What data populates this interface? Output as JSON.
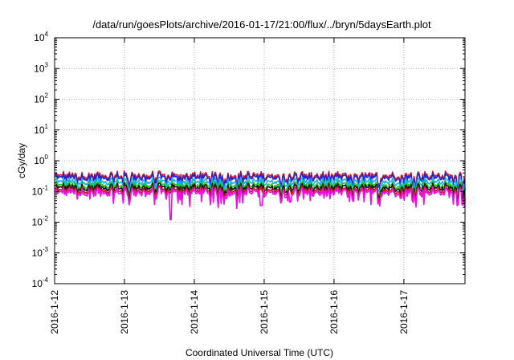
{
  "chart_data": {
    "type": "line",
    "title": "/data/run/goesPlots/archive/2016-01-17/21:00/flux/../bryn/5daysEarth.plot",
    "xlabel": "Coordinated Universal Time (UTC)",
    "ylabel": "cGy/day",
    "yscale": "log",
    "ylim": [
      0.0001,
      10000
    ],
    "yticks": [
      {
        "base": "10",
        "exp": "-4",
        "value": 0.0001
      },
      {
        "base": "10",
        "exp": "-3",
        "value": 0.001
      },
      {
        "base": "10",
        "exp": "-2",
        "value": 0.01
      },
      {
        "base": "10",
        "exp": "-1",
        "value": 0.1
      },
      {
        "base": "10",
        "exp": "0",
        "value": 1
      },
      {
        "base": "10",
        "exp": "1",
        "value": 10
      },
      {
        "base": "10",
        "exp": "2",
        "value": 100
      },
      {
        "base": "10",
        "exp": "3",
        "value": 1000
      },
      {
        "base": "10",
        "exp": "4",
        "value": 10000
      }
    ],
    "xlim": [
      "2016-01-12",
      "2016-01-17T21:00"
    ],
    "xticks": [
      "2016-1-12",
      "2016-1-13",
      "2016-1-14",
      "2016-1-15",
      "2016-1-16",
      "2016-1-17"
    ],
    "grid": true,
    "series": [
      {
        "color": "#e8141e",
        "level": 0.33,
        "dips": []
      },
      {
        "color": "#2222d8",
        "level": 0.29,
        "dips": []
      },
      {
        "color": "#18b4f0",
        "level": 0.21,
        "dips": []
      },
      {
        "color": "#1ec81e",
        "level": 0.16,
        "dips": []
      },
      {
        "color": "#101010",
        "level": 0.135,
        "dips": []
      },
      {
        "color": "#c81414",
        "level": 0.11,
        "dips": []
      },
      {
        "color": "#f010e6",
        "level": 0.095,
        "dips": [
          {
            "x": "2016-01-13T16:00",
            "y": 0.012
          },
          {
            "x": "2016-01-14T23:00",
            "y": 0.035
          },
          {
            "x": "2016-01-15T09:00",
            "y": 0.045
          },
          {
            "x": "2016-01-16T23:00",
            "y": 0.06
          }
        ]
      }
    ]
  }
}
